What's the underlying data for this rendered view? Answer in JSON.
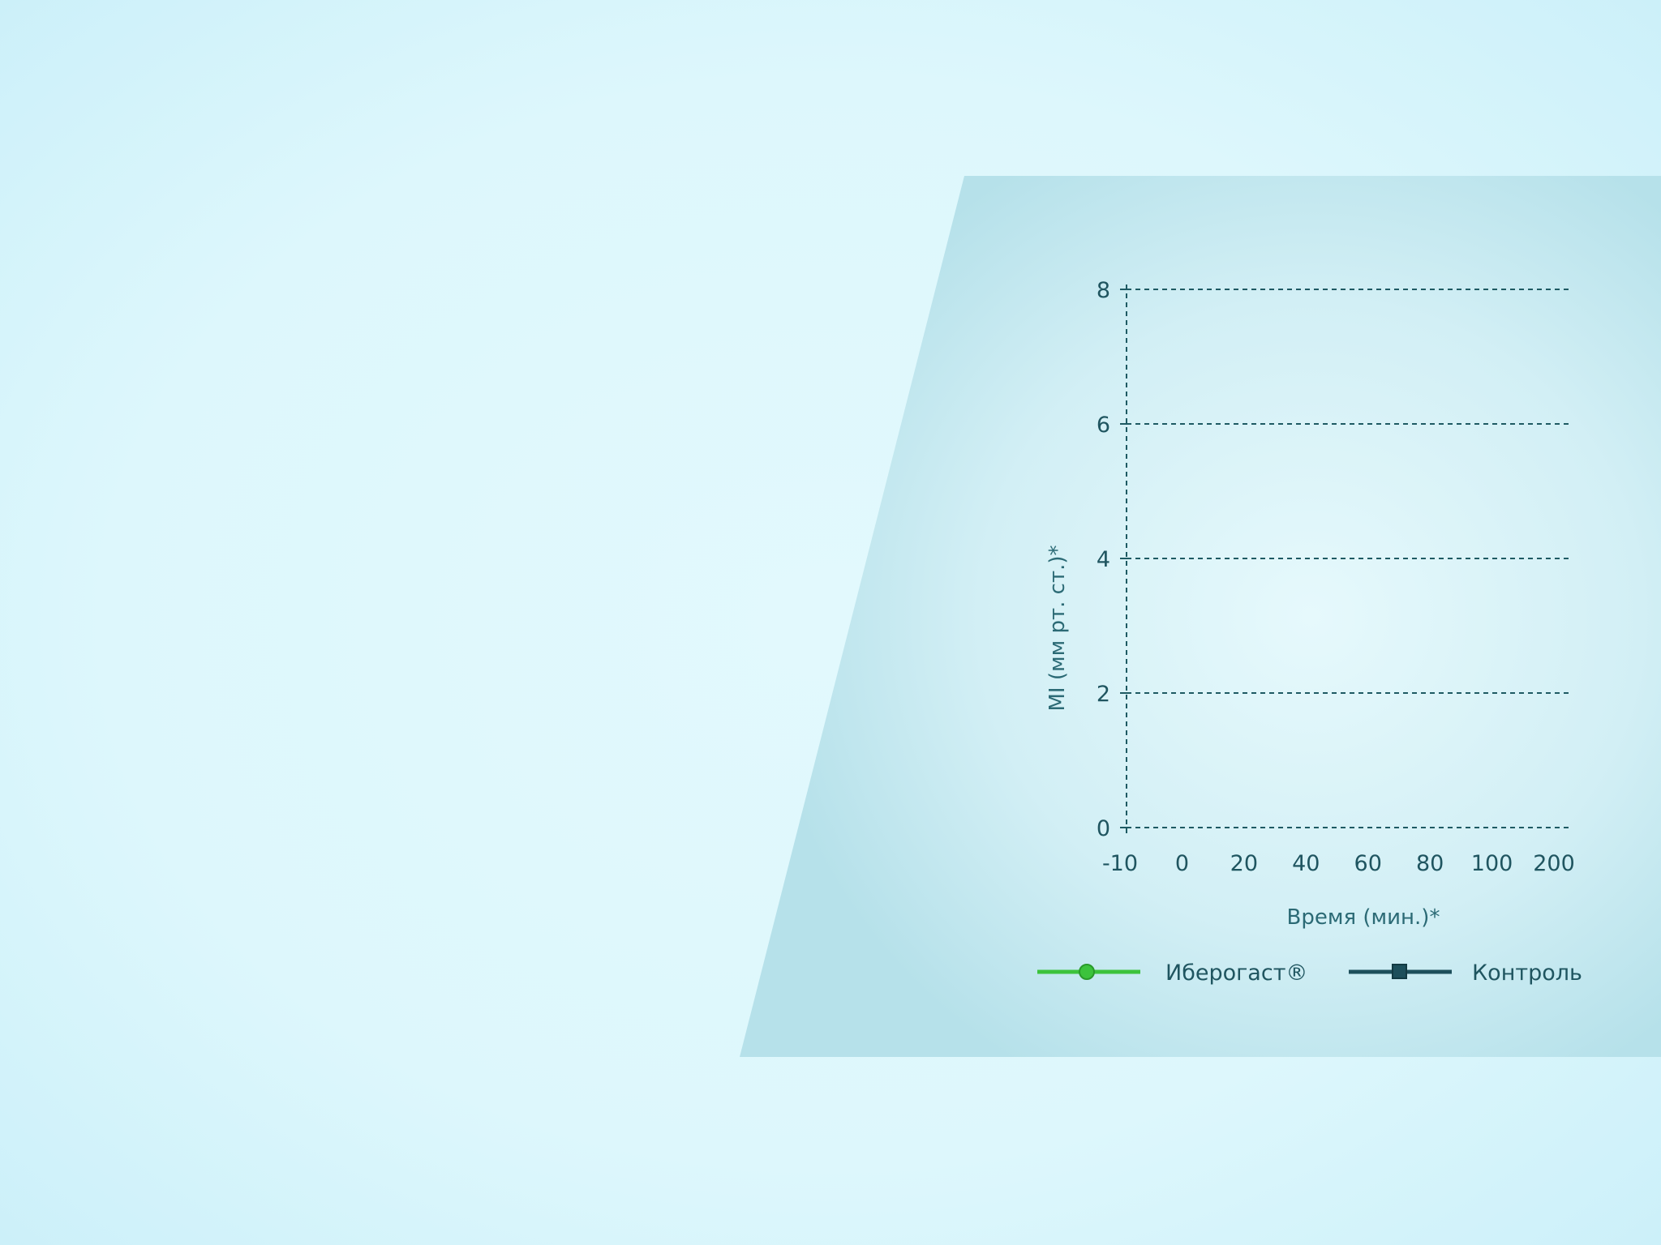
{
  "colors": {
    "panel": "#b6e1ea",
    "grid": "#1e5a63",
    "text": "#1f5560",
    "series_iberogast": "#3cc33c",
    "series_control": "#1d4f5b"
  },
  "chart_data": {
    "type": "line",
    "x_ticks": [
      "-10",
      "0",
      "20",
      "40",
      "60",
      "80",
      "100",
      "200"
    ],
    "y_ticks": [
      "0",
      "2",
      "4",
      "6",
      "8"
    ],
    "ylim": [
      0,
      8
    ],
    "xlabel": "Время (мин.)*",
    "ylabel": "MI (мм рт. ст.)*",
    "grid": true,
    "legend_position": "bottom",
    "series": [
      {
        "name": "Иберогаст®",
        "marker": "circle",
        "color": "#3cc33c",
        "values": []
      },
      {
        "name": "Контроль",
        "marker": "square",
        "color": "#1d4f5b",
        "values": []
      }
    ]
  }
}
